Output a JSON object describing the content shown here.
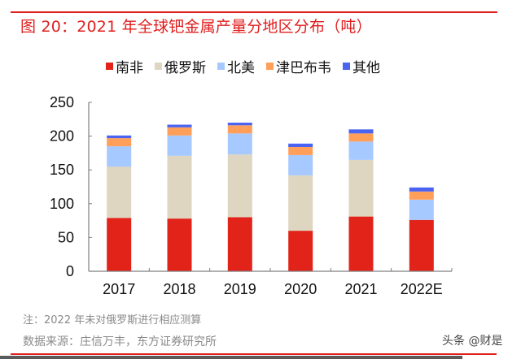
{
  "title": "图 20：2021 年全球钯金属产量分地区分布（吨）",
  "note": "注：2022 年未对俄罗斯进行相应测算",
  "source": "数据来源：庄信万丰，东方证券研究所",
  "watermark": "头条 @财是",
  "colors": {
    "accent": "#e01e1e",
    "series": [
      "#e2231a",
      "#ded6c1",
      "#a6c9ff",
      "#ff9f5a",
      "#4a63f0"
    ]
  },
  "chart_data": {
    "type": "bar",
    "stacked": true,
    "title": "2021 年全球钯金属产量分地区分布（吨）",
    "xlabel": "",
    "ylabel": "",
    "ylim": [
      0,
      250
    ],
    "yticks": [
      "0",
      "50",
      "100",
      "150",
      "200",
      "250"
    ],
    "categories": [
      "2017",
      "2018",
      "2019",
      "2020",
      "2021",
      "2022E"
    ],
    "legend_position": "top",
    "grid": false,
    "series": [
      {
        "name": "南非",
        "color": "#e2231a",
        "values": [
          79,
          78,
          80,
          60,
          81,
          76
        ]
      },
      {
        "name": "俄罗斯",
        "color": "#ded6c1",
        "values": [
          76,
          93,
          93,
          82,
          84,
          0
        ]
      },
      {
        "name": "北美",
        "color": "#a6c9ff",
        "values": [
          30,
          30,
          31,
          30,
          27,
          30
        ]
      },
      {
        "name": "津巴布韦",
        "color": "#ff9f5a",
        "values": [
          12,
          12,
          12,
          12,
          12,
          12
        ]
      },
      {
        "name": "其他",
        "color": "#4a63f0",
        "values": [
          4,
          4,
          4,
          5,
          6,
          6
        ]
      }
    ]
  }
}
